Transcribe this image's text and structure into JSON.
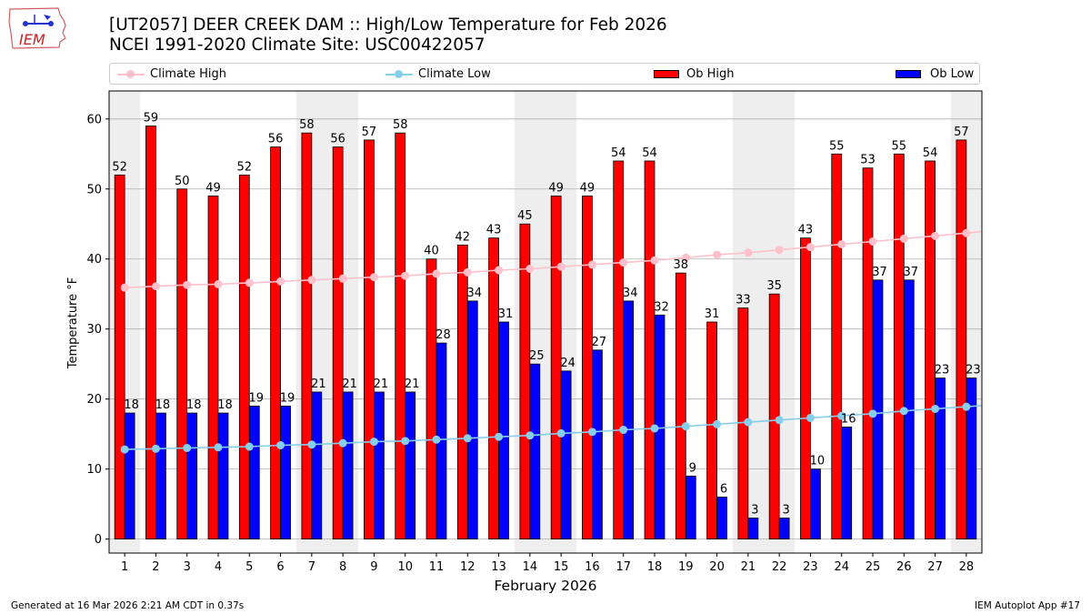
{
  "logo": {
    "text": "IEM"
  },
  "title": {
    "line1": "[UT2057] DEER CREEK DAM :: High/Low Temperature for Feb 2026",
    "line2": "NCEI 1991-2020 Climate Site: USC00422057"
  },
  "legend": {
    "climate_high": "Climate High",
    "climate_low": "Climate Low",
    "ob_high": "Ob High",
    "ob_low": "Ob Low"
  },
  "footer": {
    "left": "Generated at 16 Mar 2026 2:21 AM CDT in 0.37s",
    "right": "IEM Autoplot App #17"
  },
  "colors": {
    "ob_high": "#ff0000",
    "ob_low": "#0000ff",
    "climate_high": "#ffc0cb",
    "climate_low": "#87ceeb",
    "weekend_shade": "#eeeeee",
    "grid": "#b0b0b0"
  },
  "chart_data": {
    "type": "bar",
    "xlabel": "February 2026",
    "ylabel": "Temperature °F",
    "ylim": [
      -2,
      64
    ],
    "yticks": [
      0,
      10,
      20,
      30,
      40,
      50,
      60
    ],
    "grid": true,
    "legend_position": "top",
    "categories": [
      "1",
      "2",
      "3",
      "4",
      "5",
      "6",
      "7",
      "8",
      "9",
      "10",
      "11",
      "12",
      "13",
      "14",
      "15",
      "16",
      "17",
      "18",
      "19",
      "20",
      "21",
      "22",
      "23",
      "24",
      "25",
      "26",
      "27",
      "28"
    ],
    "weekend_days": [
      1,
      7,
      8,
      14,
      15,
      21,
      22,
      28
    ],
    "series": [
      {
        "name": "Ob High",
        "kind": "bar",
        "values": [
          52,
          59,
          50,
          49,
          52,
          56,
          58,
          56,
          57,
          58,
          40,
          42,
          43,
          45,
          49,
          49,
          54,
          54,
          38,
          31,
          33,
          35,
          43,
          55,
          53,
          55,
          54,
          57
        ]
      },
      {
        "name": "Ob Low",
        "kind": "bar",
        "values": [
          18,
          18,
          18,
          18,
          19,
          19,
          21,
          21,
          21,
          21,
          28,
          34,
          31,
          25,
          24,
          27,
          34,
          32,
          9,
          6,
          3,
          3,
          10,
          16,
          37,
          37,
          23,
          23
        ]
      },
      {
        "name": "Climate High",
        "kind": "line",
        "values": [
          35.9,
          36.1,
          36.3,
          36.4,
          36.6,
          36.8,
          37.0,
          37.2,
          37.4,
          37.6,
          37.9,
          38.1,
          38.4,
          38.6,
          38.9,
          39.2,
          39.5,
          39.8,
          40.2,
          40.6,
          40.9,
          41.3,
          41.7,
          42.1,
          42.5,
          42.9,
          43.3,
          43.7
        ]
      },
      {
        "name": "Climate Low",
        "kind": "line",
        "values": [
          12.8,
          12.9,
          13.0,
          13.1,
          13.2,
          13.4,
          13.5,
          13.7,
          13.9,
          14.0,
          14.2,
          14.4,
          14.6,
          14.8,
          15.1,
          15.3,
          15.6,
          15.8,
          16.1,
          16.4,
          16.7,
          17.0,
          17.3,
          17.6,
          17.9,
          18.3,
          18.6,
          18.9
        ]
      }
    ]
  }
}
